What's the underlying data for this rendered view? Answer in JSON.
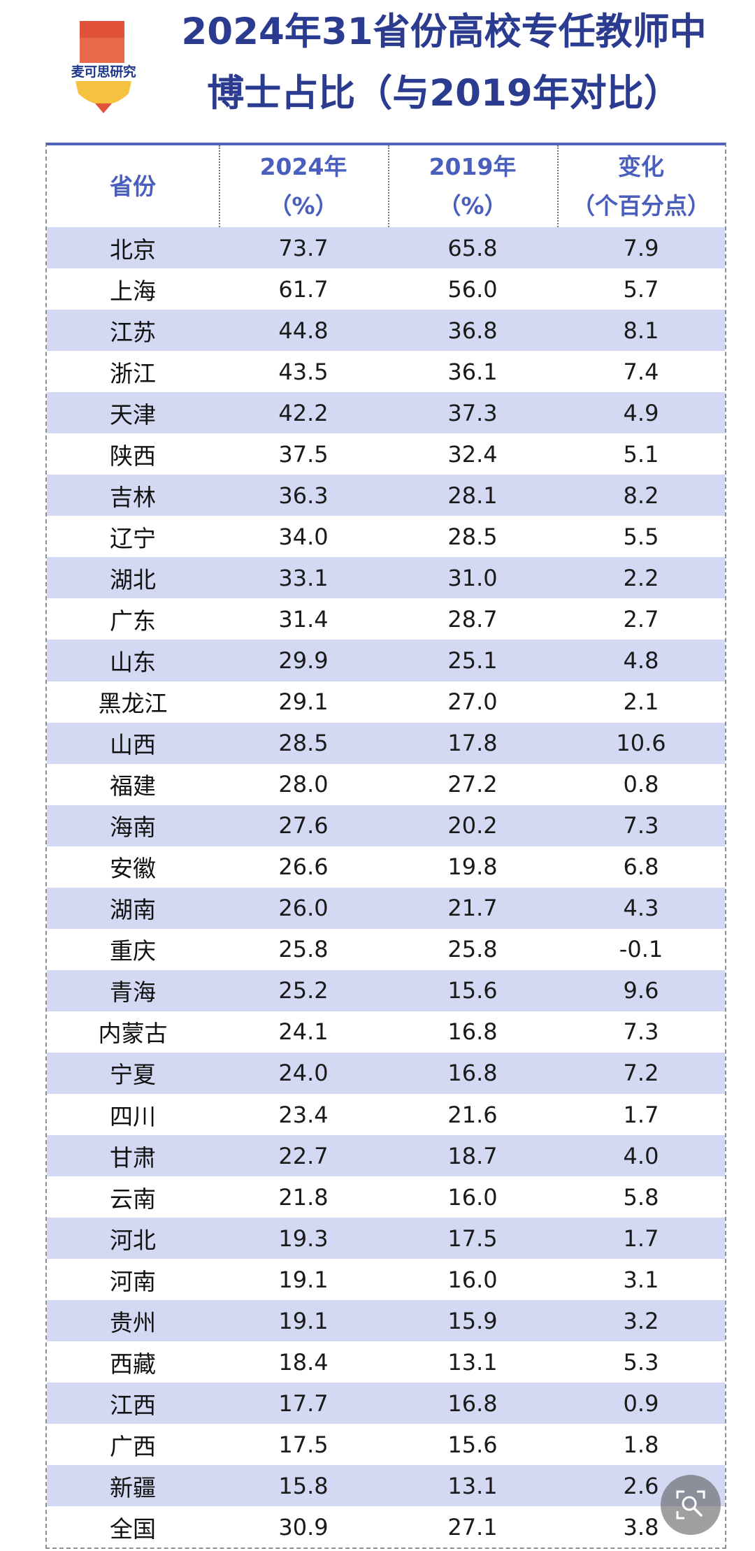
{
  "logo": {
    "text": "麦可思研究",
    "colors": {
      "top": "#e0533a",
      "bottom": "#f4c23f",
      "text": "#1f3a8a"
    }
  },
  "title": {
    "line1": "2024年31省份高校专任教师中",
    "line2": "博士占比（与2019年对比）"
  },
  "table": {
    "header": {
      "col0": "省份",
      "col1_line1": "2024年",
      "col1_line2": "（%）",
      "col2_line1": "2019年",
      "col2_line2": "（%）",
      "col3_line1": "变化",
      "col3_line2": "（个百分点）"
    },
    "rows": [
      {
        "province": "北京",
        "y2024": "73.7",
        "y2019": "65.8",
        "change": "7.9"
      },
      {
        "province": "上海",
        "y2024": "61.7",
        "y2019": "56.0",
        "change": "5.7"
      },
      {
        "province": "江苏",
        "y2024": "44.8",
        "y2019": "36.8",
        "change": "8.1"
      },
      {
        "province": "浙江",
        "y2024": "43.5",
        "y2019": "36.1",
        "change": "7.4"
      },
      {
        "province": "天津",
        "y2024": "42.2",
        "y2019": "37.3",
        "change": "4.9"
      },
      {
        "province": "陕西",
        "y2024": "37.5",
        "y2019": "32.4",
        "change": "5.1"
      },
      {
        "province": "吉林",
        "y2024": "36.3",
        "y2019": "28.1",
        "change": "8.2"
      },
      {
        "province": "辽宁",
        "y2024": "34.0",
        "y2019": "28.5",
        "change": "5.5"
      },
      {
        "province": "湖北",
        "y2024": "33.1",
        "y2019": "31.0",
        "change": "2.2"
      },
      {
        "province": "广东",
        "y2024": "31.4",
        "y2019": "28.7",
        "change": "2.7"
      },
      {
        "province": "山东",
        "y2024": "29.9",
        "y2019": "25.1",
        "change": "4.8"
      },
      {
        "province": "黑龙江",
        "y2024": "29.1",
        "y2019": "27.0",
        "change": "2.1"
      },
      {
        "province": "山西",
        "y2024": "28.5",
        "y2019": "17.8",
        "change": "10.6"
      },
      {
        "province": "福建",
        "y2024": "28.0",
        "y2019": "27.2",
        "change": "0.8"
      },
      {
        "province": "海南",
        "y2024": "27.6",
        "y2019": "20.2",
        "change": "7.3"
      },
      {
        "province": "安徽",
        "y2024": "26.6",
        "y2019": "19.8",
        "change": "6.8"
      },
      {
        "province": "湖南",
        "y2024": "26.0",
        "y2019": "21.7",
        "change": "4.3"
      },
      {
        "province": "重庆",
        "y2024": "25.8",
        "y2019": "25.8",
        "change": "-0.1"
      },
      {
        "province": "青海",
        "y2024": "25.2",
        "y2019": "15.6",
        "change": "9.6"
      },
      {
        "province": "内蒙古",
        "y2024": "24.1",
        "y2019": "16.8",
        "change": "7.3"
      },
      {
        "province": "宁夏",
        "y2024": "24.0",
        "y2019": "16.8",
        "change": "7.2"
      },
      {
        "province": "四川",
        "y2024": "23.4",
        "y2019": "21.6",
        "change": "1.7"
      },
      {
        "province": "甘肃",
        "y2024": "22.7",
        "y2019": "18.7",
        "change": "4.0"
      },
      {
        "province": "云南",
        "y2024": "21.8",
        "y2019": "16.0",
        "change": "5.8"
      },
      {
        "province": "河北",
        "y2024": "19.3",
        "y2019": "17.5",
        "change": "1.7"
      },
      {
        "province": "河南",
        "y2024": "19.1",
        "y2019": "16.0",
        "change": "3.1"
      },
      {
        "province": "贵州",
        "y2024": "19.1",
        "y2019": "15.9",
        "change": "3.2"
      },
      {
        "province": "西藏",
        "y2024": "18.4",
        "y2019": "13.1",
        "change": "5.3"
      },
      {
        "province": "江西",
        "y2024": "17.7",
        "y2019": "16.8",
        "change": "0.9"
      },
      {
        "province": "广西",
        "y2024": "17.5",
        "y2019": "15.6",
        "change": "1.8"
      },
      {
        "province": "新疆",
        "y2024": "15.8",
        "y2019": "13.1",
        "change": "2.6"
      },
      {
        "province": "全国",
        "y2024": "30.9",
        "y2019": "27.1",
        "change": "3.8"
      }
    ]
  },
  "zoom_button": {
    "icon": "zoom-search-icon"
  },
  "colors": {
    "title": "#2b3b8f",
    "header_text": "#4a5fbd",
    "header_rule": "#4f63b8",
    "row_stripe": "#d4d9f3"
  }
}
